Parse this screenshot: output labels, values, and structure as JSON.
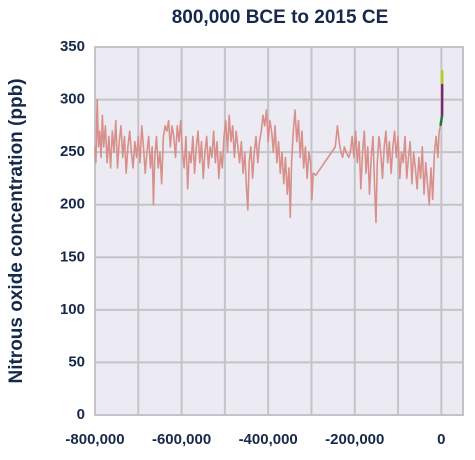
{
  "chart_data": {
    "type": "line",
    "title": "800,000 BCE to 2015 CE",
    "y_label": "Nitrous oxide concentration (ppb)",
    "xlim": [
      -800000,
      50000
    ],
    "xticks": [
      {
        "value": -800000,
        "label": "-800,000"
      },
      {
        "value": -600000,
        "label": "-600,000"
      },
      {
        "value": -400000,
        "label": "-400,000"
      },
      {
        "value": -200000,
        "label": "-200,000"
      },
      0
    ],
    "xgrid": [
      -700000,
      -500000,
      -300000,
      -100000
    ],
    "ylim": [
      0,
      350
    ],
    "yticks": [
      0,
      50,
      100,
      150,
      200,
      250,
      300,
      350
    ],
    "grid": true,
    "series": [
      {
        "color": "#d8908b",
        "x": [
          -800000,
          -798000,
          -795000,
          -792000,
          -789000,
          -786000,
          -783000,
          -780000,
          -776000,
          -772000,
          -768000,
          -764000,
          -760000,
          -756000,
          -752000,
          -748000,
          -744000,
          -740000,
          -736000,
          -732000,
          -728000,
          -724000,
          -720000,
          -716000,
          -712000,
          -708000,
          -704000,
          -700000,
          -696000,
          -692000,
          -688000,
          -684000,
          -680000,
          -676000,
          -672000,
          -668000,
          -665000,
          -662000,
          -658000,
          -654000,
          -650000,
          -646000,
          -642000,
          -638000,
          -634000,
          -630000,
          -626000,
          -622000,
          -618000,
          -614000,
          -610000,
          -606000,
          -602000,
          -598000,
          -594000,
          -590000,
          -586000,
          -582000,
          -578000,
          -574000,
          -570000,
          -566000,
          -562000,
          -558000,
          -554000,
          -550000,
          -546000,
          -542000,
          -538000,
          -534000,
          -530000,
          -526000,
          -522000,
          -518000,
          -514000,
          -510000,
          -506000,
          -502000,
          -498000,
          -494000,
          -490000,
          -486000,
          -482000,
          -478000,
          -474000,
          -470000,
          -466000,
          -462000,
          -458000,
          -454000,
          -450000,
          -447000,
          -444000,
          -440000,
          -436000,
          -432000,
          -428000,
          -424000,
          -420000,
          -416000,
          -412000,
          -408000,
          -404000,
          -400000,
          -396000,
          -392000,
          -388000,
          -384000,
          -380000,
          -376000,
          -372000,
          -368000,
          -364000,
          -360000,
          -356000,
          -352000,
          -349000,
          -346000,
          -342000,
          -338000,
          -334000,
          -330000,
          -326000,
          -322000,
          -318000,
          -314000,
          -310000,
          -306000,
          -302000,
          -299000,
          -296000,
          -290000,
          -245000,
          -240000,
          -236000,
          -232000,
          -228000,
          -224000,
          -220000,
          -214000,
          -210000,
          -206000,
          -202000,
          -198000,
          -194000,
          -190000,
          -186000,
          -182000,
          -178000,
          -174000,
          -170000,
          -166000,
          -162000,
          -158000,
          -154000,
          -151000,
          -148000,
          -144000,
          -140000,
          -136000,
          -132000,
          -128000,
          -124000,
          -120000,
          -116000,
          -112000,
          -108000,
          -104000,
          -100000,
          -96000,
          -92000,
          -88000,
          -84000,
          -80000,
          -76000,
          -72000,
          -68000,
          -64000,
          -60000,
          -56000,
          -52000,
          -48000,
          -44000,
          -40000,
          -36000,
          -32000,
          -28000,
          -24000,
          -20000,
          -16000,
          -12000,
          -8000,
          -5000,
          -2000
        ],
        "values": [
          255,
          240,
          300,
          255,
          270,
          245,
          285,
          255,
          275,
          240,
          265,
          235,
          270,
          250,
          280,
          235,
          260,
          275,
          245,
          265,
          230,
          255,
          270,
          250,
          235,
          260,
          245,
          265,
          240,
          275,
          255,
          230,
          250,
          265,
          235,
          255,
          200,
          245,
          265,
          235,
          250,
          220,
          265,
          275,
          270,
          280,
          255,
          275,
          265,
          245,
          275,
          260,
          280,
          250,
          235,
          265,
          215,
          250,
          240,
          265,
          230,
          255,
          270,
          240,
          260,
          225,
          250,
          265,
          235,
          255,
          245,
          270,
          240,
          260,
          225,
          250,
          235,
          265,
          280,
          250,
          285,
          260,
          275,
          245,
          270,
          255,
          240,
          260,
          230,
          250,
          215,
          195,
          240,
          255,
          225,
          250,
          265,
          240,
          260,
          270,
          285,
          275,
          290,
          260,
          280,
          270,
          250,
          275,
          240,
          260,
          230,
          250,
          220,
          245,
          210,
          235,
          188,
          240,
          270,
          290,
          260,
          280,
          245,
          270,
          235,
          255,
          225,
          250,
          240,
          205,
          230,
          228,
          255,
          275,
          260,
          250,
          245,
          255,
          250,
          245,
          250,
          265,
          245,
          270,
          240,
          260,
          215,
          250,
          270,
          230,
          255,
          210,
          245,
          265,
          215,
          183,
          240,
          265,
          250,
          225,
          255,
          270,
          240,
          260,
          230,
          255,
          270,
          245,
          265,
          225,
          250,
          240,
          265,
          225,
          245,
          260,
          220,
          250,
          235,
          215,
          245,
          225,
          255,
          210,
          240,
          220,
          200,
          235,
          205,
          250,
          265,
          245,
          270,
          275
        ]
      },
      {
        "color": "#1f7a2e",
        "x": [
          -2000,
          1750
        ],
        "values": [
          275,
          285
        ]
      },
      {
        "color": "#7a2a6a",
        "x": [
          1750,
          1950
        ],
        "values": [
          285,
          315
        ]
      },
      {
        "color": "#b5cc18",
        "x": [
          1950,
          2015
        ],
        "values": [
          315,
          328
        ]
      }
    ]
  }
}
